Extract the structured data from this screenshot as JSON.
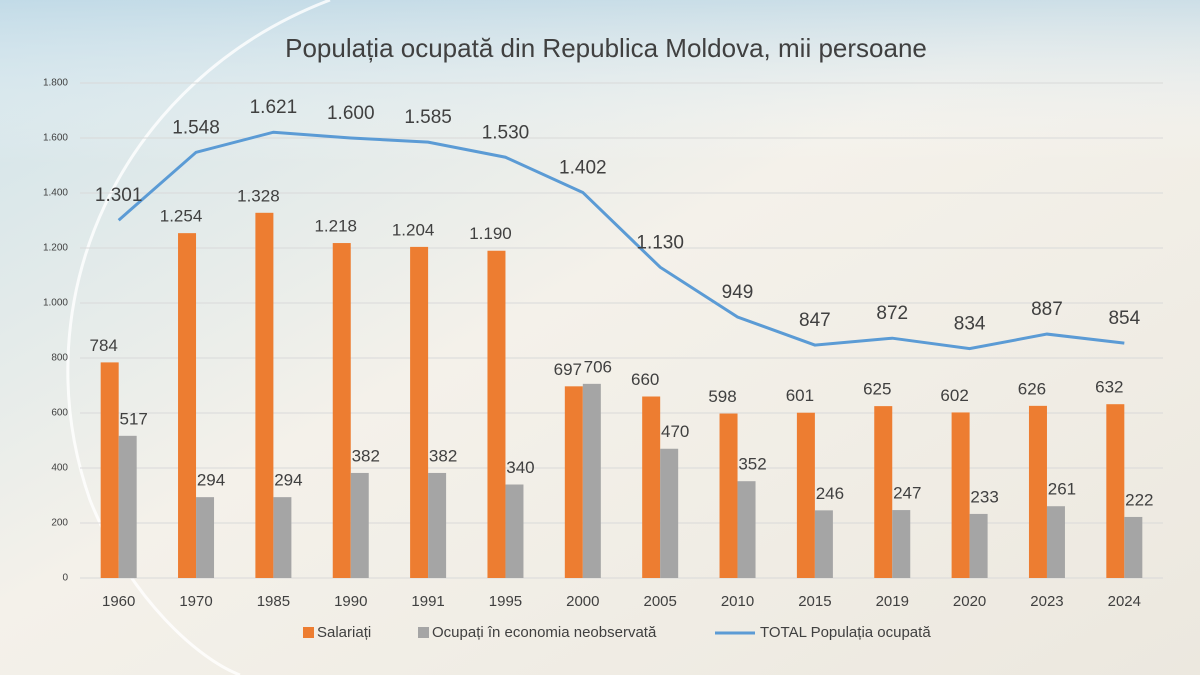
{
  "chart_data": {
    "type": "bar",
    "title": "Populația ocupată din Republica Moldova, mii persoane",
    "categories": [
      "1960",
      "1970",
      "1985",
      "1990",
      "1991",
      "1995",
      "2000",
      "2005",
      "2010",
      "2015",
      "2019",
      "2020",
      "2023",
      "2024"
    ],
    "series": [
      {
        "name": "Salariați",
        "color": "#ed7d31",
        "values": [
          784,
          1254,
          1328,
          1218,
          1204,
          1190,
          697,
          660,
          598,
          601,
          625,
          602,
          626,
          632
        ],
        "value_labels": [
          "784",
          "1.254",
          "1.328",
          "1.218",
          "1.204",
          "1.190",
          "697",
          "660",
          "598",
          "601",
          "625",
          "602",
          "626",
          "632"
        ]
      },
      {
        "name": "Ocupați în economia neobservată",
        "color": "#a5a5a5",
        "values": [
          517,
          294,
          294,
          382,
          382,
          340,
          706,
          470,
          352,
          246,
          247,
          233,
          261,
          222
        ]
      },
      {
        "name": "TOTAL Populația ocupată",
        "color": "#5b9bd5",
        "type": "line",
        "values": [
          1301,
          1548,
          1621,
          1600,
          1585,
          1530,
          1402,
          1130,
          949,
          847,
          872,
          834,
          887,
          854
        ],
        "value_labels": [
          "1.301",
          "1.548",
          "1.621",
          "1.600",
          "1.585",
          "1.530",
          "1.402",
          "1.130",
          "949",
          "847",
          "872",
          "834",
          "887",
          "854"
        ]
      }
    ],
    "ylim": [
      0,
      1800
    ],
    "yticks": [
      0,
      200,
      400,
      600,
      800,
      {
        "value": 1000,
        "label": "1.000"
      },
      {
        "value": 1200,
        "label": "1.200"
      },
      {
        "value": 1400,
        "label": "1.400"
      },
      {
        "value": 1600,
        "label": "1.600"
      },
      {
        "value": 1800,
        "label": "1.800"
      }
    ],
    "grid": true,
    "legend": "bottom"
  }
}
